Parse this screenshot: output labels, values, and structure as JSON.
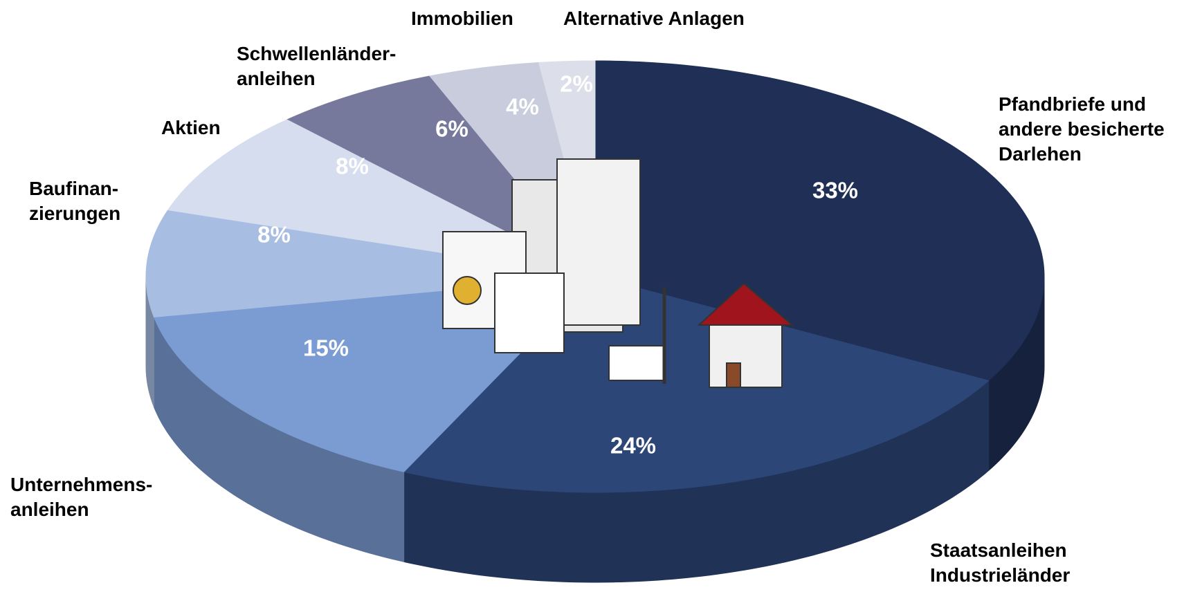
{
  "chart_data": {
    "type": "pie3d",
    "categories": [
      [
        "Pfandbriefe und",
        "andere besicherte",
        "Darlehen"
      ],
      [
        "Staatsanleihen",
        "Industrieländer"
      ],
      [
        "Unternehmens-",
        "anleihen"
      ],
      [
        "Baufinan-",
        "zierungen"
      ],
      [
        "Aktien"
      ],
      [
        "Schwellenländer-",
        "anleihen"
      ],
      [
        "Immobilien"
      ],
      [
        "Alternative Anlagen"
      ]
    ],
    "values": [
      33,
      24,
      15,
      8,
      8,
      6,
      4,
      2
    ],
    "value_labels": [
      "33%",
      "24%",
      "15%",
      "8%",
      "8%",
      "6%",
      "4%",
      "2%"
    ],
    "colors": [
      "#1f2f55",
      "#2c4777",
      "#7b9bd3",
      "#a7bde1",
      "#d5ddef",
      "#76799c",
      "#c9ccdc",
      "#dcdfe9"
    ]
  }
}
